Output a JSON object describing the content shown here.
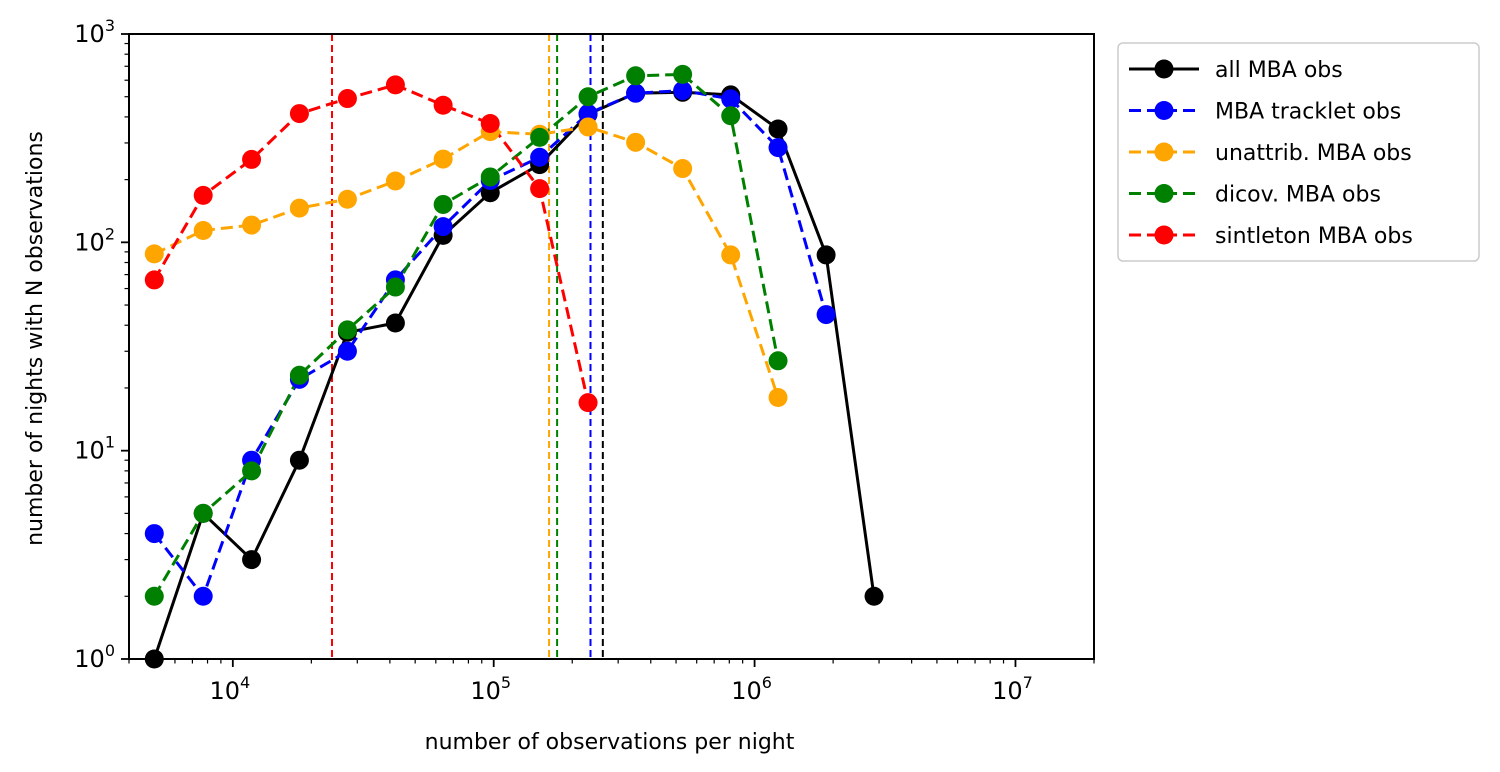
{
  "chart_data": {
    "type": "line",
    "title": "",
    "xlabel": "number of observations per night",
    "ylabel": "number of nights with N observations",
    "xscale": "log",
    "yscale": "log",
    "xlim": [
      4000,
      20000000
    ],
    "ylim": [
      1,
      1000
    ],
    "grid": false,
    "legend_position": "outside-upper-right",
    "x_major_ticks": [
      {
        "value": 10000,
        "base": "10",
        "exp": "4"
      },
      {
        "value": 100000,
        "base": "10",
        "exp": "5"
      },
      {
        "value": 1000000,
        "base": "10",
        "exp": "6"
      },
      {
        "value": 10000000,
        "base": "10",
        "exp": "7"
      }
    ],
    "y_major_ticks": [
      {
        "value": 1,
        "base": "10",
        "exp": "0"
      },
      {
        "value": 10,
        "base": "10",
        "exp": "1"
      },
      {
        "value": 100,
        "base": "10",
        "exp": "2"
      },
      {
        "value": 1000,
        "base": "10",
        "exp": "3"
      }
    ],
    "series": [
      {
        "name": "all MBA obs",
        "color": "#000000",
        "dashed": false,
        "x": [
          5000,
          7700,
          11800,
          18000,
          27500,
          42000,
          64000,
          97000,
          150000,
          230000,
          350000,
          530000,
          810000,
          1230000,
          1880000,
          2870000
        ],
        "y": [
          1,
          5,
          3,
          9,
          37,
          41,
          108,
          173,
          236,
          412,
          520,
          525,
          510,
          350,
          87,
          2
        ]
      },
      {
        "name": "MBA tracklet obs",
        "color": "#0000ff",
        "dashed": true,
        "x": [
          5000,
          7700,
          11800,
          18000,
          27500,
          42000,
          64000,
          97000,
          150000,
          230000,
          350000,
          530000,
          810000,
          1230000,
          1880000
        ],
        "y": [
          4,
          2,
          9,
          22,
          30,
          66,
          119,
          198,
          256,
          415,
          520,
          535,
          488,
          285,
          45
        ]
      },
      {
        "name": "unattrib. MBA obs",
        "color": "#ffa500",
        "dashed": true,
        "x": [
          5000,
          7700,
          11800,
          18000,
          27500,
          42000,
          64000,
          97000,
          150000,
          230000,
          350000,
          530000,
          810000,
          1230000
        ],
        "y": [
          88,
          114,
          121,
          146,
          161,
          197,
          251,
          340,
          330,
          358,
          302,
          226,
          87,
          18
        ]
      },
      {
        "name": "dicov. MBA obs",
        "color": "#008000",
        "dashed": true,
        "x": [
          5000,
          7700,
          11800,
          18000,
          27500,
          42000,
          64000,
          97000,
          150000,
          230000,
          350000,
          530000,
          810000,
          1230000
        ],
        "y": [
          2,
          5,
          8,
          23,
          38,
          61,
          152,
          206,
          319,
          500,
          630,
          640,
          405,
          27
        ]
      },
      {
        "name": "sintleton MBA obs",
        "color": "#ff0000",
        "dashed": true,
        "x": [
          5000,
          7700,
          11800,
          18000,
          27500,
          42000,
          64000,
          97000,
          150000,
          230000
        ],
        "y": [
          66,
          168,
          250,
          415,
          490,
          570,
          455,
          372,
          181,
          17
        ]
      }
    ],
    "vertical_lines": [
      {
        "x": 24000,
        "color": "#ff0000"
      },
      {
        "x": 163000,
        "color": "#ffa500"
      },
      {
        "x": 175000,
        "color": "#008000"
      },
      {
        "x": 235000,
        "color": "#0000ff"
      },
      {
        "x": 262000,
        "color": "#000000"
      }
    ]
  }
}
